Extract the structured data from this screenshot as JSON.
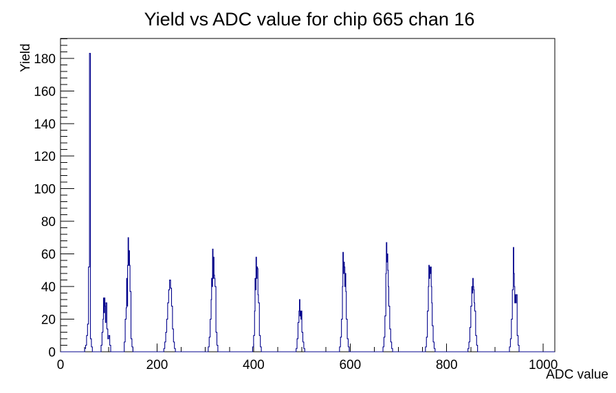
{
  "window": {
    "background": "#ffffff"
  },
  "chart_data": {
    "type": "histogram-step",
    "title": "Yield vs ADC value for chip 665 chan 16",
    "xlabel": "ADC value",
    "ylabel": "Yield",
    "xlim": [
      0,
      1024
    ],
    "ylim": [
      0,
      192.15
    ],
    "x_major_ticks": [
      0,
      200,
      400,
      600,
      800,
      1000
    ],
    "x_minor_tick_step": 50,
    "y_major_ticks": [
      0,
      20,
      40,
      60,
      80,
      100,
      120,
      140,
      160,
      180
    ],
    "y_minor_tick_step": 4,
    "grid": false,
    "legend": false,
    "line_color": "#00008b",
    "axis_color": "#000000",
    "peaks": [
      {
        "center": 60,
        "height": 183
      },
      {
        "center": 91,
        "height": 33
      },
      {
        "center": 140,
        "height": 70
      },
      {
        "center": 226,
        "height": 44
      },
      {
        "center": 316,
        "height": 63
      },
      {
        "center": 406,
        "height": 58
      },
      {
        "center": 496,
        "height": 32
      },
      {
        "center": 587,
        "height": 61
      },
      {
        "center": 677,
        "height": 67
      },
      {
        "center": 766,
        "height": 53
      },
      {
        "center": 854,
        "height": 45
      },
      {
        "center": 940,
        "height": 64
      }
    ],
    "bins": [
      [
        50,
        2,
        2
      ],
      [
        52,
        2,
        4
      ],
      [
        54,
        2,
        10
      ],
      [
        56,
        2,
        17
      ],
      [
        58,
        2,
        52
      ],
      [
        60,
        2,
        183
      ],
      [
        62,
        2,
        8
      ],
      [
        64,
        2,
        3
      ],
      [
        84,
        2,
        4
      ],
      [
        86,
        2,
        12
      ],
      [
        88,
        1,
        20
      ],
      [
        89,
        1,
        33
      ],
      [
        90,
        1,
        24
      ],
      [
        91,
        1,
        33
      ],
      [
        92,
        1,
        28
      ],
      [
        93,
        1,
        18
      ],
      [
        94,
        2,
        30
      ],
      [
        96,
        2,
        14
      ],
      [
        98,
        2,
        8
      ],
      [
        100,
        2,
        10
      ],
      [
        102,
        2,
        4
      ],
      [
        132,
        2,
        6
      ],
      [
        134,
        2,
        20
      ],
      [
        136,
        1,
        27
      ],
      [
        137,
        1,
        45
      ],
      [
        138,
        1,
        28
      ],
      [
        139,
        1,
        53
      ],
      [
        140,
        1,
        70
      ],
      [
        141,
        1,
        53
      ],
      [
        142,
        1,
        62
      ],
      [
        143,
        1,
        53
      ],
      [
        144,
        2,
        37
      ],
      [
        146,
        2,
        8
      ],
      [
        148,
        2,
        3
      ],
      [
        214,
        2,
        2
      ],
      [
        216,
        2,
        6
      ],
      [
        218,
        2,
        12
      ],
      [
        220,
        2,
        20
      ],
      [
        222,
        2,
        30
      ],
      [
        224,
        2,
        38
      ],
      [
        226,
        2,
        44
      ],
      [
        228,
        2,
        39
      ],
      [
        230,
        2,
        28
      ],
      [
        232,
        2,
        14
      ],
      [
        234,
        2,
        6
      ],
      [
        236,
        2,
        2
      ],
      [
        306,
        2,
        3
      ],
      [
        308,
        2,
        9
      ],
      [
        310,
        2,
        20
      ],
      [
        312,
        1,
        32
      ],
      [
        313,
        1,
        45
      ],
      [
        314,
        1,
        40
      ],
      [
        315,
        1,
        63
      ],
      [
        316,
        1,
        45
      ],
      [
        317,
        1,
        58
      ],
      [
        318,
        1,
        47
      ],
      [
        319,
        1,
        45
      ],
      [
        320,
        2,
        40
      ],
      [
        322,
        2,
        12
      ],
      [
        324,
        2,
        4
      ],
      [
        398,
        2,
        3
      ],
      [
        400,
        2,
        10
      ],
      [
        402,
        1,
        25
      ],
      [
        403,
        1,
        45
      ],
      [
        404,
        1,
        38
      ],
      [
        405,
        1,
        58
      ],
      [
        406,
        1,
        45
      ],
      [
        407,
        1,
        52
      ],
      [
        408,
        1,
        51
      ],
      [
        409,
        1,
        35
      ],
      [
        410,
        2,
        30
      ],
      [
        412,
        2,
        10
      ],
      [
        414,
        2,
        3
      ],
      [
        488,
        2,
        2
      ],
      [
        490,
        2,
        8
      ],
      [
        492,
        2,
        18
      ],
      [
        494,
        1,
        25
      ],
      [
        495,
        1,
        32
      ],
      [
        496,
        1,
        22
      ],
      [
        497,
        1,
        25
      ],
      [
        498,
        1,
        20
      ],
      [
        499,
        1,
        25
      ],
      [
        500,
        2,
        12
      ],
      [
        502,
        2,
        6
      ],
      [
        504,
        2,
        2
      ],
      [
        578,
        2,
        3
      ],
      [
        580,
        2,
        9
      ],
      [
        582,
        2,
        20
      ],
      [
        584,
        1,
        40
      ],
      [
        585,
        1,
        61
      ],
      [
        586,
        1,
        48
      ],
      [
        587,
        1,
        55
      ],
      [
        588,
        1,
        52
      ],
      [
        589,
        1,
        40
      ],
      [
        590,
        1,
        48
      ],
      [
        591,
        1,
        37
      ],
      [
        592,
        2,
        20
      ],
      [
        594,
        2,
        8
      ],
      [
        596,
        2,
        3
      ],
      [
        668,
        2,
        3
      ],
      [
        670,
        2,
        9
      ],
      [
        672,
        2,
        22
      ],
      [
        674,
        1,
        48
      ],
      [
        675,
        1,
        67
      ],
      [
        676,
        1,
        55
      ],
      [
        677,
        1,
        60
      ],
      [
        678,
        1,
        50
      ],
      [
        679,
        1,
        40
      ],
      [
        680,
        2,
        28
      ],
      [
        682,
        2,
        14
      ],
      [
        684,
        2,
        6
      ],
      [
        686,
        2,
        2
      ],
      [
        756,
        2,
        3
      ],
      [
        758,
        2,
        9
      ],
      [
        760,
        2,
        25
      ],
      [
        762,
        1,
        40
      ],
      [
        763,
        1,
        53
      ],
      [
        764,
        1,
        45
      ],
      [
        765,
        1,
        52
      ],
      [
        766,
        1,
        48
      ],
      [
        767,
        1,
        52
      ],
      [
        768,
        1,
        40
      ],
      [
        769,
        1,
        30
      ],
      [
        770,
        2,
        16
      ],
      [
        772,
        2,
        6
      ],
      [
        774,
        2,
        2
      ],
      [
        844,
        2,
        2
      ],
      [
        846,
        2,
        6
      ],
      [
        848,
        2,
        15
      ],
      [
        850,
        2,
        28
      ],
      [
        852,
        1,
        40
      ],
      [
        853,
        1,
        36
      ],
      [
        854,
        1,
        45
      ],
      [
        855,
        1,
        40
      ],
      [
        856,
        1,
        38
      ],
      [
        857,
        1,
        30
      ],
      [
        858,
        2,
        25
      ],
      [
        860,
        2,
        10
      ],
      [
        862,
        2,
        4
      ],
      [
        930,
        2,
        3
      ],
      [
        932,
        2,
        8
      ],
      [
        934,
        2,
        20
      ],
      [
        936,
        2,
        38
      ],
      [
        938,
        1,
        64
      ],
      [
        939,
        1,
        48
      ],
      [
        940,
        1,
        40
      ],
      [
        941,
        1,
        30
      ],
      [
        942,
        1,
        35
      ],
      [
        943,
        1,
        30
      ],
      [
        944,
        2,
        35
      ],
      [
        946,
        2,
        10
      ],
      [
        948,
        2,
        4
      ]
    ]
  }
}
